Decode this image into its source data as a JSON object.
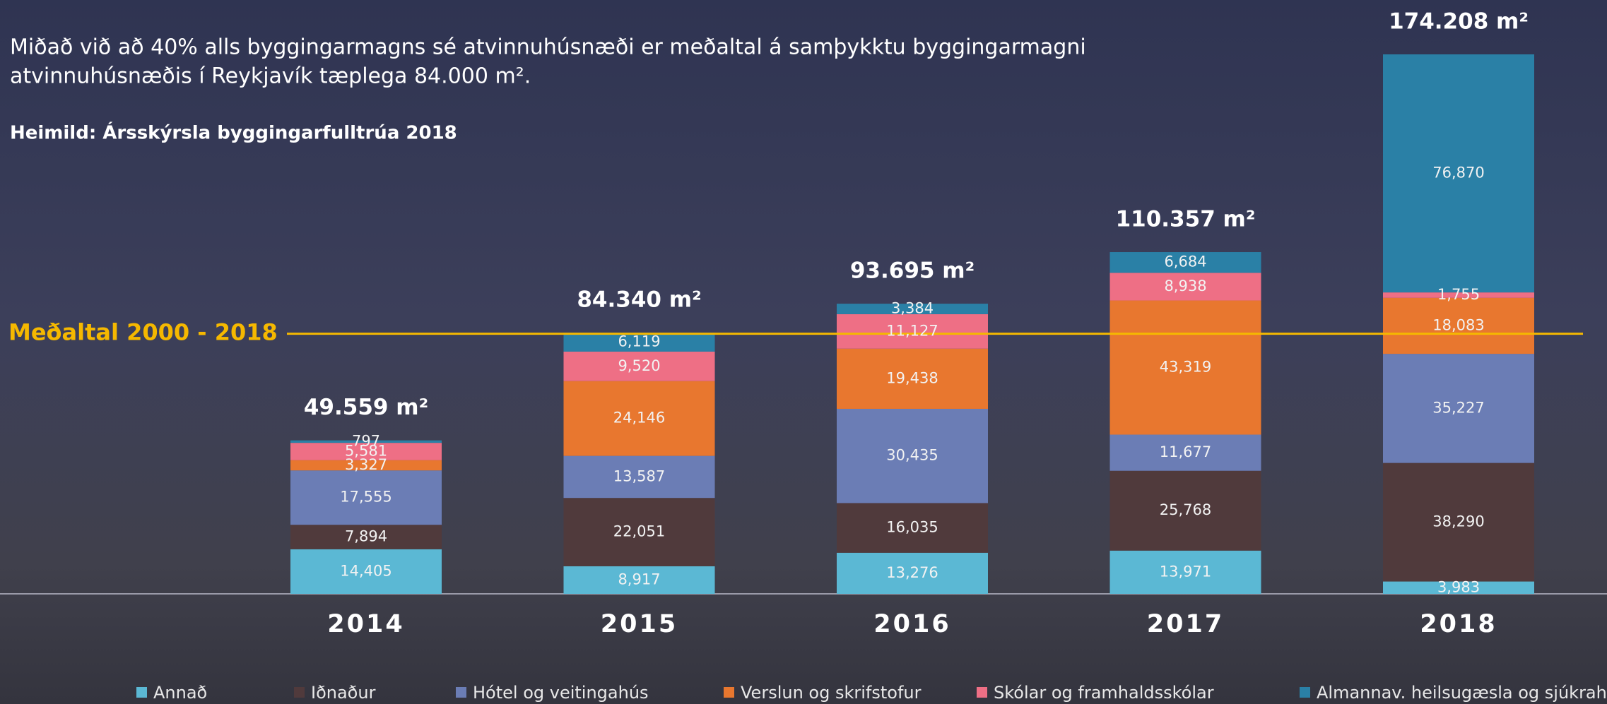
{
  "chart_data": {
    "type": "stacked_bar",
    "title_lines": [
      "Miðað við að 40% alls byggingarmagns sé atvinnuhúsnæði er meðaltal á samþykktu byggingarmagni",
      "atvinnuhúsnæðis í Reykjavík tæplega 84.000 m²."
    ],
    "source": "Heimild: Ársskýrsla byggingarfulltrúa 2018",
    "categories": [
      "2014",
      "2015",
      "2016",
      "2017",
      "2018"
    ],
    "total_labels": [
      "49.559 m²",
      "84.340 m²",
      "93.695 m²",
      "110.357 m²",
      "174.208 m²"
    ],
    "reference_line": {
      "label": "Meðaltal 2000 - 2018",
      "value": 84000,
      "color": "#f5b800"
    },
    "series": [
      {
        "name": "Annað",
        "color": "#5bb8d4",
        "values": [
          14405,
          8917,
          13276,
          13971,
          3983
        ],
        "value_labels": [
          "14,405",
          "8,917",
          "13,276",
          "13,971",
          "3,983"
        ]
      },
      {
        "name": "Iðnaður",
        "color": "#503a3c",
        "values": [
          7894,
          22051,
          16035,
          25768,
          38290
        ],
        "value_labels": [
          "7,894",
          "22,051",
          "16,035",
          "25,768",
          "38,290"
        ]
      },
      {
        "name": "Hótel og veitingahús",
        "color": "#6b7db5",
        "values": [
          17555,
          13587,
          30435,
          11677,
          35227
        ],
        "value_labels": [
          "17,555",
          "13,587",
          "30,435",
          "11,677",
          "35,227"
        ]
      },
      {
        "name": "Verslun og skrifstofur",
        "color": "#e8772f",
        "values": [
          3327,
          24146,
          19438,
          43319,
          18083
        ],
        "value_labels": [
          "3,327",
          "24,146",
          "19,438",
          "43,319",
          "18,083"
        ]
      },
      {
        "name": "Skólar og framhaldsskólar",
        "color": "#ee6f85",
        "values": [
          5581,
          9520,
          11127,
          8938,
          1755
        ],
        "value_labels": [
          "5,581",
          "9,520",
          "11,127",
          "8,938",
          "1,755"
        ]
      },
      {
        "name": "Almannav. heilsugæsla og sjúkrah.",
        "color": "#2a80a6",
        "values": [
          797,
          6119,
          3384,
          6684,
          76870
        ],
        "value_labels": [
          "797",
          "6,119",
          "3,384",
          "6,684",
          "76,870"
        ]
      }
    ]
  }
}
